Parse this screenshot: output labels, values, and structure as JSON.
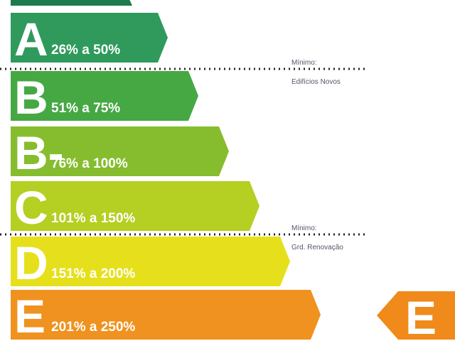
{
  "bands": [
    {
      "letter": "A",
      "range": "26% a 50%",
      "color": "#2f9a5c"
    },
    {
      "letter": "B",
      "range": "51% a 75%",
      "color": "#45a843"
    },
    {
      "letter": "B-",
      "range": "76% a 100%",
      "color": "#86bd2f"
    },
    {
      "letter": "C",
      "range": "101% a 150%",
      "color": "#b5cf22"
    },
    {
      "letter": "D",
      "range": "151% a 200%",
      "color": "#e6e01c"
    },
    {
      "letter": "E",
      "range": "201% a 250%",
      "color": "#ef921f"
    }
  ],
  "thresholds": [
    {
      "label": "Mínimo:",
      "sublabel": "Edifícios Novos"
    },
    {
      "label": "Mínimo:",
      "sublabel": "Grd. Renovação"
    }
  ],
  "rating": {
    "letter": "E",
    "color": "#ef8a1b"
  }
}
